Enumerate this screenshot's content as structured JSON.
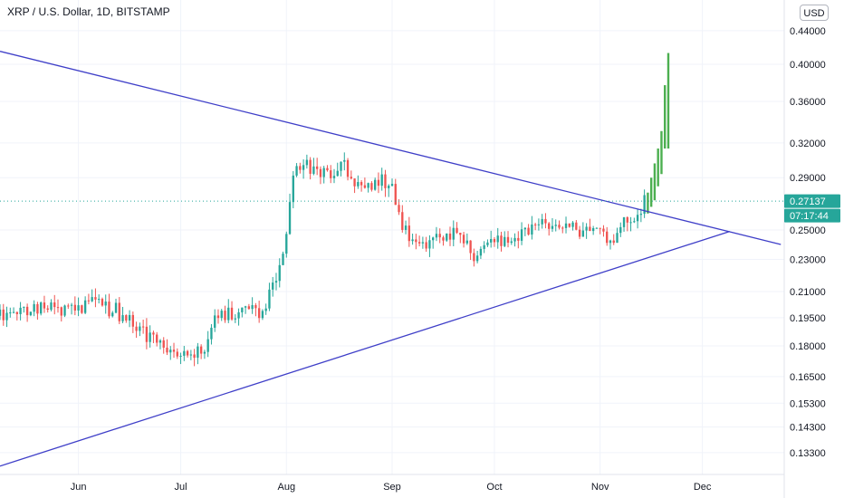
{
  "chart_data": {
    "type": "candlestick",
    "title": "XRP / U.S. Dollar, 1D, BITSTAMP",
    "currency_button": "USD",
    "y_axis": {
      "scale": "log",
      "tick_labels": [
        "0.44000",
        "0.40000",
        "0.36000",
        "0.32000",
        "0.29000",
        "0.27137",
        "0.25000",
        "0.23000",
        "0.21000",
        "0.19500",
        "0.18000",
        "0.16500",
        "0.15300",
        "0.14300",
        "0.13300"
      ],
      "ylim": [
        0.125,
        0.48
      ]
    },
    "x_axis": {
      "tick_labels": [
        "Jun",
        "Jul",
        "Aug",
        "Sep",
        "Oct",
        "Nov",
        "Dec"
      ],
      "xlim": [
        "2020-05-09",
        "2020-12-25"
      ]
    },
    "last_price": {
      "value": 0.27137,
      "label": "0.27137",
      "countdown": "07:17:44",
      "color": "#26a69a"
    },
    "colors": {
      "up": "#26a69a",
      "down": "#ef5350",
      "projection": "#4caf50",
      "trendline": "#3f3fc8",
      "grid": "#f0f3fa"
    },
    "trendlines": [
      {
        "name": "resistance",
        "from": {
          "date": "2020-05-09",
          "price": 0.415
        },
        "to": {
          "date": "2020-12-24",
          "price": 0.24
        }
      },
      {
        "name": "support",
        "from": {
          "date": "2020-05-09",
          "price": 0.128
        },
        "to": {
          "date": "2020-12-09",
          "price": 0.249
        }
      }
    ],
    "waypoints": [
      {
        "date": "2020-05-09",
        "price": 0.196
      },
      {
        "date": "2020-05-15",
        "price": 0.2
      },
      {
        "date": "2020-05-22",
        "price": 0.201
      },
      {
        "date": "2020-05-29",
        "price": 0.198
      },
      {
        "date": "2020-06-05",
        "price": 0.203
      },
      {
        "date": "2020-06-12",
        "price": 0.199
      },
      {
        "date": "2020-06-20",
        "price": 0.187
      },
      {
        "date": "2020-06-27",
        "price": 0.176
      },
      {
        "date": "2020-07-04",
        "price": 0.175
      },
      {
        "date": "2020-07-08",
        "price": 0.18
      },
      {
        "date": "2020-07-11",
        "price": 0.197
      },
      {
        "date": "2020-07-18",
        "price": 0.197
      },
      {
        "date": "2020-07-25",
        "price": 0.199
      },
      {
        "date": "2020-07-29",
        "price": 0.215
      },
      {
        "date": "2020-08-01",
        "price": 0.25
      },
      {
        "date": "2020-08-03",
        "price": 0.29
      },
      {
        "date": "2020-08-06",
        "price": 0.305
      },
      {
        "date": "2020-08-10",
        "price": 0.295
      },
      {
        "date": "2020-08-13",
        "price": 0.29
      },
      {
        "date": "2020-08-17",
        "price": 0.306
      },
      {
        "date": "2020-08-20",
        "price": 0.29
      },
      {
        "date": "2020-08-26",
        "price": 0.285
      },
      {
        "date": "2020-08-31",
        "price": 0.288
      },
      {
        "date": "2020-09-04",
        "price": 0.254
      },
      {
        "date": "2020-09-08",
        "price": 0.241
      },
      {
        "date": "2020-09-14",
        "price": 0.243
      },
      {
        "date": "2020-09-20",
        "price": 0.247
      },
      {
        "date": "2020-09-25",
        "price": 0.232
      },
      {
        "date": "2020-09-30",
        "price": 0.242
      },
      {
        "date": "2020-10-06",
        "price": 0.246
      },
      {
        "date": "2020-10-12",
        "price": 0.252
      },
      {
        "date": "2020-10-18",
        "price": 0.254
      },
      {
        "date": "2020-10-24",
        "price": 0.25
      },
      {
        "date": "2020-10-30",
        "price": 0.252
      },
      {
        "date": "2020-11-04",
        "price": 0.243
      },
      {
        "date": "2020-11-08",
        "price": 0.255
      },
      {
        "date": "2020-11-12",
        "price": 0.262
      },
      {
        "date": "2020-11-14",
        "price": 0.2714
      }
    ],
    "projection_bars": [
      {
        "date": "2020-11-15",
        "low": 0.262,
        "high": 0.278
      },
      {
        "date": "2020-11-16",
        "low": 0.267,
        "high": 0.29
      },
      {
        "date": "2020-11-17",
        "low": 0.272,
        "high": 0.302
      },
      {
        "date": "2020-11-18",
        "low": 0.283,
        "high": 0.315
      },
      {
        "date": "2020-11-19",
        "low": 0.293,
        "high": 0.331
      },
      {
        "date": "2020-11-20",
        "low": 0.315,
        "high": 0.377
      },
      {
        "date": "2020-11-21",
        "low": 0.315,
        "high": 0.413
      }
    ]
  }
}
